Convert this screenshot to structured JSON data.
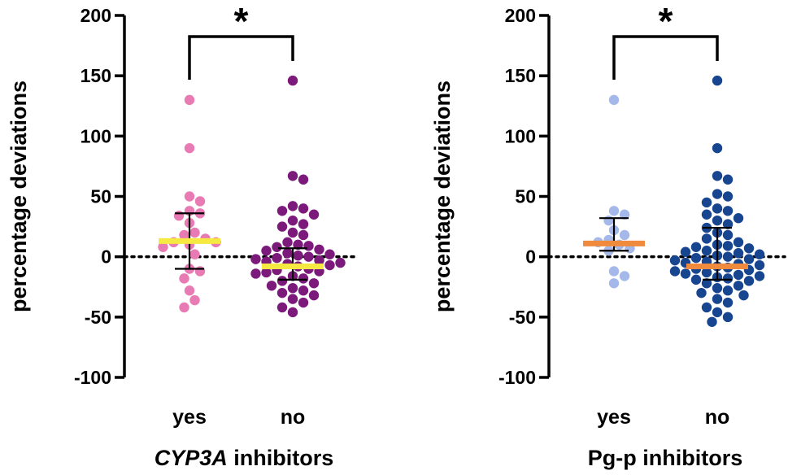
{
  "chart_data": [
    {
      "type": "scatter",
      "title": "",
      "ylabel": "percentage deviations",
      "xlabel_italic": "CYP3A",
      "xlabel_rest": " inhibitors",
      "categories": [
        "yes",
        "no"
      ],
      "ylim": [
        -100,
        200
      ],
      "yticks": [
        200,
        150,
        100,
        50,
        0,
        -50,
        -100
      ],
      "ytick_labels": [
        "200",
        "150",
        "100",
        "50",
        "0",
        "-50",
        "-100"
      ],
      "reference_line": 0,
      "significance_label": "*",
      "groups": [
        {
          "category": "yes",
          "color": "#e87bb3",
          "median": 13,
          "median_color": "#f5e942",
          "iqr": [
            -10,
            36
          ],
          "points": [
            130,
            90,
            50,
            46,
            38,
            36,
            34,
            28,
            20,
            18,
            15,
            12,
            12,
            10,
            8,
            2,
            -10,
            -12,
            -18,
            -28,
            -36,
            -42
          ]
        },
        {
          "category": "no",
          "color": "#7c1a7c",
          "median": -8,
          "median_color": "#f5e942",
          "iqr": [
            -19,
            7
          ],
          "points": [
            146,
            67,
            64,
            42,
            40,
            38,
            35,
            30,
            27,
            25,
            20,
            18,
            12,
            10,
            9,
            8,
            6,
            5,
            3,
            2,
            1,
            0,
            -1,
            -2,
            -3,
            -4,
            -5,
            -6,
            -7,
            -8,
            -10,
            -11,
            -12,
            -13,
            -14,
            -16,
            -18,
            -20,
            -22,
            -24,
            -26,
            -28,
            -30,
            -32,
            -35,
            -38,
            -42,
            -46
          ]
        }
      ]
    },
    {
      "type": "scatter",
      "title": "",
      "ylabel": "percentage deviations",
      "xlabel_italic": "",
      "xlabel_rest": "Pg-p inhibitors",
      "categories": [
        "yes",
        "no"
      ],
      "ylim": [
        -100,
        200
      ],
      "yticks": [
        200,
        150,
        100,
        50,
        0,
        -50,
        -100
      ],
      "ytick_labels": [
        "200",
        "150",
        "100",
        "50",
        "0",
        "-50",
        "-100"
      ],
      "reference_line": 0,
      "significance_label": "*",
      "groups": [
        {
          "category": "yes",
          "color": "#a4b9ea",
          "median": 11,
          "median_color": "#f08a3c",
          "iqr": [
            5,
            32
          ],
          "points": [
            130,
            38,
            35,
            30,
            22,
            18,
            14,
            12,
            10,
            7,
            5,
            -12,
            -16,
            -22
          ]
        },
        {
          "category": "no",
          "color": "#17458f",
          "median": -8,
          "median_color": "#f08a3c",
          "iqr": [
            -19,
            24
          ],
          "points": [
            146,
            90,
            67,
            64,
            52,
            50,
            45,
            40,
            38,
            35,
            32,
            30,
            27,
            24,
            20,
            18,
            15,
            12,
            10,
            9,
            8,
            7,
            5,
            4,
            3,
            2,
            1,
            0,
            -1,
            -2,
            -3,
            -4,
            -5,
            -6,
            -7,
            -8,
            -9,
            -10,
            -11,
            -12,
            -13,
            -14,
            -15,
            -16,
            -17,
            -18,
            -19,
            -20,
            -22,
            -24,
            -26,
            -28,
            -30,
            -32,
            -35,
            -38,
            -42,
            -46,
            -50,
            -54
          ]
        }
      ]
    }
  ]
}
